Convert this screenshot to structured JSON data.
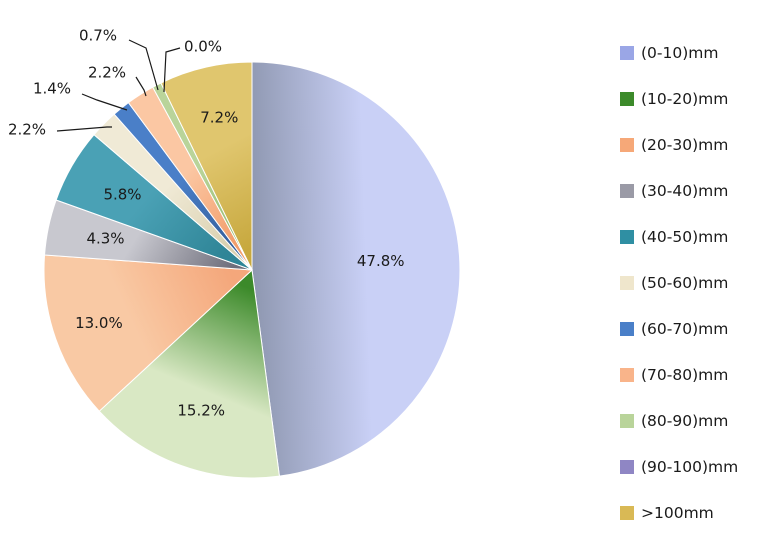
{
  "chart_data": {
    "type": "pie",
    "start_angle_deg": 0,
    "direction": "clockwise",
    "legend_position": "right",
    "slices": [
      {
        "category": "(0-10)mm",
        "value": 47.8,
        "label": "47.8%",
        "color": "#c9d0f6",
        "color_dark": "#8e97b0"
      },
      {
        "category": "(10-20)mm",
        "value": 15.2,
        "label": "15.2%",
        "color": "#d9e8c4",
        "color_dark": "#3c8a2a"
      },
      {
        "category": "(20-30)mm",
        "value": 13.0,
        "label": "13.0%",
        "color": "#f9c9a4",
        "color_dark": "#f4a77b"
      },
      {
        "category": "(30-40)mm",
        "value": 4.3,
        "label": "4.3%",
        "color": "#c8c8cf",
        "color_dark": "#6d6d7a"
      },
      {
        "category": "(40-50)mm",
        "value": 5.8,
        "label": "5.8%",
        "color": "#4aa1b5",
        "color_dark": "#2f8597"
      },
      {
        "category": "(50-60)mm",
        "value": 2.2,
        "label": "2.2%",
        "color": "#f0ead6",
        "color_dark": "#d9d0b0"
      },
      {
        "category": "(60-70)mm",
        "value": 1.4,
        "label": "1.4%",
        "color": "#4a7fc8",
        "color_dark": "#355f9c"
      },
      {
        "category": "(70-80)mm",
        "value": 2.2,
        "label": "2.2%",
        "color": "#fbc7a3",
        "color_dark": "#f29d6b"
      },
      {
        "category": "(80-90)mm",
        "value": 0.7,
        "label": "0.7%",
        "color": "#b9d49a",
        "color_dark": "#8fb86a"
      },
      {
        "category": "(90-100)mm",
        "value": 0.0,
        "label": "0.0%",
        "color": "#a39bd0",
        "color_dark": "#7f76b3"
      },
      {
        "category": ">100mm",
        "value": 7.2,
        "label": "7.2%",
        "color": "#e0c66e",
        "color_dark": "#c7a83e"
      }
    ]
  },
  "legend": {
    "items": [
      {
        "label": "(0-10)mm",
        "color": "#9aa6e6"
      },
      {
        "label": "(10-20)mm",
        "color": "#3c8a2a"
      },
      {
        "label": "(20-30)mm",
        "color": "#f6a878"
      },
      {
        "label": "(30-40)mm",
        "color": "#9a9aa6"
      },
      {
        "label": "(40-50)mm",
        "color": "#2f8fa3"
      },
      {
        "label": "(50-60)mm",
        "color": "#efe6cc"
      },
      {
        "label": "(60-70)mm",
        "color": "#4a7fc8"
      },
      {
        "label": "(70-80)mm",
        "color": "#f9b48a"
      },
      {
        "label": "(80-90)mm",
        "color": "#b9d49a"
      },
      {
        "label": "(90-100)mm",
        "color": "#8f86c4"
      },
      {
        "label": ">100mm",
        "color": "#d9b955"
      }
    ]
  }
}
